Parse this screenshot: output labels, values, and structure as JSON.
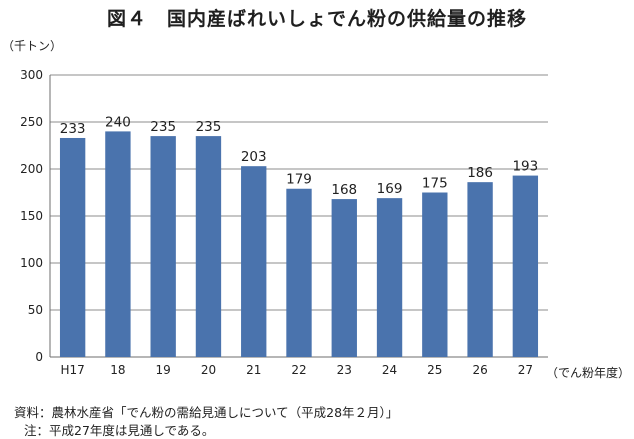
{
  "figure": {
    "title": "図４　国内産ばれいしょでん粉の供給量の推移"
  },
  "chart_data": {
    "type": "bar",
    "title": "図４　国内産ばれいしょでん粉の供給量の推移",
    "ylabel": "（千トン）",
    "xlabel": "（でん粉年度）",
    "categories": [
      "H17",
      "18",
      "19",
      "20",
      "21",
      "22",
      "23",
      "24",
      "25",
      "26",
      "27"
    ],
    "values": [
      233,
      240,
      235,
      235,
      203,
      179,
      168,
      169,
      175,
      186,
      193
    ],
    "ylim": [
      0,
      300
    ],
    "yticks": [
      0,
      50,
      100,
      150,
      200,
      250,
      300
    ],
    "grid": true,
    "bar_color": "#4a73ad",
    "grid_color": "#8c8c8c"
  },
  "notes": {
    "source": "資料：農林水産省「でん粉の需給見通しについて（平成28年２月）」",
    "remark": "注：平成27年度は見通しである。"
  }
}
